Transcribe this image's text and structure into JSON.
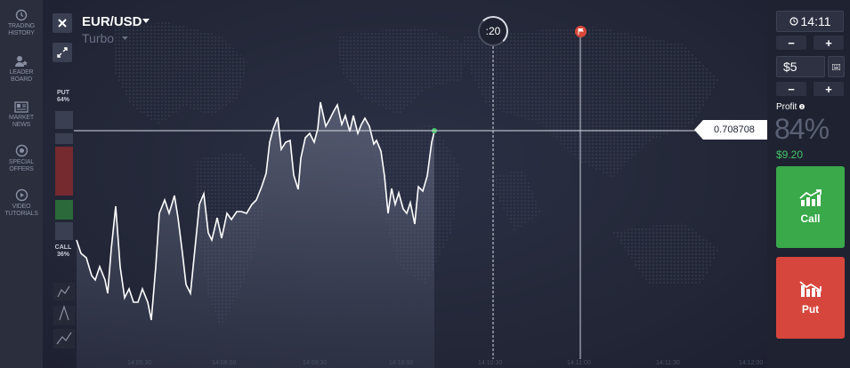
{
  "sidebar": {
    "items": [
      {
        "label": "TRADING HISTORY",
        "icon": "history-icon"
      },
      {
        "label": "LEADER BOARD",
        "icon": "leaderboard-icon"
      },
      {
        "label": "MARKET NEWS",
        "icon": "news-icon"
      },
      {
        "label": "SPECIAL OFFERS",
        "icon": "offers-icon"
      },
      {
        "label": "VIDEO TUTORIALS",
        "icon": "play-icon"
      }
    ]
  },
  "asset": {
    "name": "EUR/USD",
    "type": "Turbo"
  },
  "indicators": {
    "put_label": "PUT",
    "put_pct": "64%",
    "call_label": "CALL",
    "call_pct": "36%"
  },
  "timer": {
    "countdown": ":20"
  },
  "price": {
    "current": "0.708708"
  },
  "panel": {
    "time": "14:11",
    "amount": "$5",
    "profit_label": "Profit",
    "profit_pct": "84%",
    "profit_amount": "$9.20",
    "call_label": "Call",
    "put_label": "Put",
    "minus": "−",
    "plus": "+"
  },
  "x_axis_ticks": [
    "14:05:30",
    "14:08:00",
    "14:09:30",
    "14:10:00",
    "14:10:30",
    "14:11:00",
    "14:11:30",
    "14:12:00"
  ],
  "colors": {
    "call": "#39a94a",
    "put": "#d7463c",
    "background": "#1f2230",
    "profit_text": "#46c46a"
  }
}
